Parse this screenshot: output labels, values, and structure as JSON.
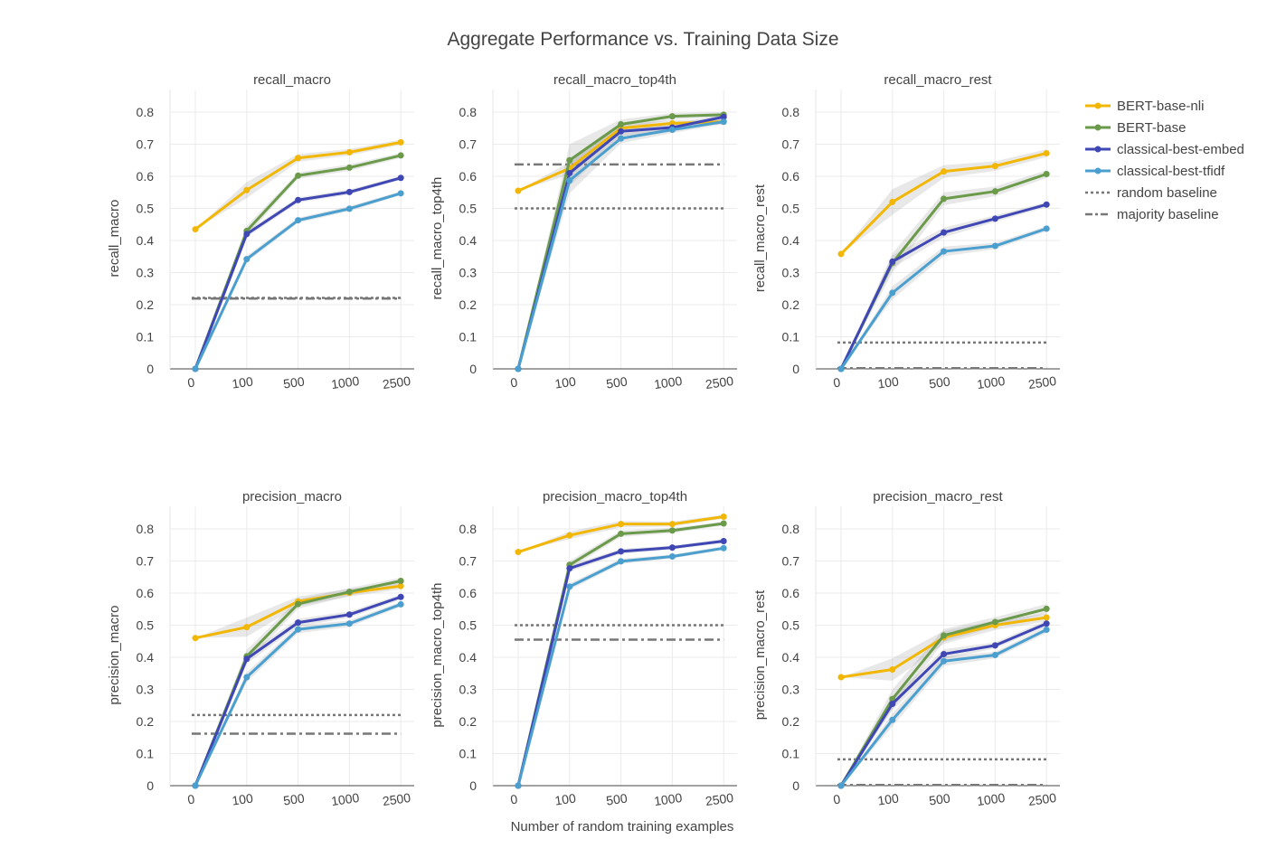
{
  "figure": {
    "title": "Aggregate Performance vs. Training Data Size",
    "shared_xlabel": "Number of random training examples"
  },
  "legend": {
    "entries": [
      {
        "label": "BERT-base-nli",
        "color": "#f2b705",
        "style": "line-marker"
      },
      {
        "label": "BERT-base",
        "color": "#6a9a4a",
        "style": "line-marker"
      },
      {
        "label": "classical-best-embed",
        "color": "#3f47b5",
        "style": "line-marker"
      },
      {
        "label": "classical-best-tfidf",
        "color": "#4a9fcf",
        "style": "line-marker"
      },
      {
        "label": "random baseline",
        "color": "#777777",
        "style": "dotted"
      },
      {
        "label": "majority baseline",
        "color": "#777777",
        "style": "dashdot"
      }
    ]
  },
  "chart_data": [
    {
      "type": "line",
      "title": "recall_macro",
      "ylabel": "recall_macro",
      "xlabel": "",
      "categories": [
        "0",
        "100",
        "500",
        "1000",
        "2500"
      ],
      "ylim": [
        0,
        0.87
      ],
      "yticks": [
        0,
        0.1,
        0.2,
        0.3,
        0.4,
        0.5,
        0.6,
        0.7,
        0.8
      ],
      "grid": true,
      "series": [
        {
          "name": "BERT-base-nli",
          "values": [
            0.435,
            0.557,
            0.657,
            0.675,
            0.706
          ],
          "band": [
            0.0,
            0.025,
            0.012,
            0.01,
            0.008
          ]
        },
        {
          "name": "BERT-base",
          "values": [
            0,
            0.43,
            0.602,
            0.627,
            0.665
          ],
          "band": [
            0,
            0.015,
            0.01,
            0.01,
            0.008
          ]
        },
        {
          "name": "classical-best-embed",
          "values": [
            0,
            0.42,
            0.526,
            0.551,
            0.595
          ],
          "band": [
            0,
            0.01,
            0.008,
            0.008,
            0.006
          ]
        },
        {
          "name": "classical-best-tfidf",
          "values": [
            0,
            0.342,
            0.463,
            0.499,
            0.547
          ],
          "band": [
            0,
            0.01,
            0.008,
            0.008,
            0.006
          ]
        }
      ],
      "baselines": [
        {
          "name": "random baseline",
          "value": 0.221
        },
        {
          "name": "majority baseline",
          "value": 0.219
        }
      ]
    },
    {
      "type": "line",
      "title": "recall_macro_top4th",
      "ylabel": "recall_macro_top4th",
      "xlabel": "",
      "categories": [
        "0",
        "100",
        "500",
        "1000",
        "2500"
      ],
      "ylim": [
        0,
        0.87
      ],
      "yticks": [
        0,
        0.1,
        0.2,
        0.3,
        0.4,
        0.5,
        0.6,
        0.7,
        0.8
      ],
      "grid": true,
      "series": [
        {
          "name": "BERT-base-nli",
          "values": [
            0.555,
            0.625,
            0.75,
            0.765,
            0.77
          ],
          "band": [
            0.0,
            0.02,
            0.012,
            0.01,
            0.008
          ]
        },
        {
          "name": "BERT-base",
          "values": [
            0,
            0.65,
            0.762,
            0.787,
            0.792
          ],
          "band": [
            0,
            0.05,
            0.015,
            0.01,
            0.008
          ]
        },
        {
          "name": "classical-best-embed",
          "values": [
            0,
            0.61,
            0.74,
            0.752,
            0.785
          ],
          "band": [
            0,
            0.04,
            0.015,
            0.01,
            0.008
          ]
        },
        {
          "name": "classical-best-tfidf",
          "values": [
            0,
            0.587,
            0.718,
            0.745,
            0.77
          ],
          "band": [
            0,
            0.04,
            0.015,
            0.01,
            0.008
          ]
        }
      ],
      "baselines": [
        {
          "name": "random baseline",
          "value": 0.5
        },
        {
          "name": "majority baseline",
          "value": 0.637
        }
      ]
    },
    {
      "type": "line",
      "title": "recall_macro_rest",
      "ylabel": "recall_macro_rest",
      "xlabel": "",
      "categories": [
        "0",
        "100",
        "500",
        "1000",
        "2500"
      ],
      "ylim": [
        0,
        0.87
      ],
      "yticks": [
        0,
        0.1,
        0.2,
        0.3,
        0.4,
        0.5,
        0.6,
        0.7,
        0.8
      ],
      "grid": true,
      "series": [
        {
          "name": "BERT-base-nli",
          "values": [
            0.358,
            0.52,
            0.615,
            0.632,
            0.672
          ],
          "band": [
            0.0,
            0.04,
            0.02,
            0.015,
            0.012
          ]
        },
        {
          "name": "BERT-base",
          "values": [
            0,
            0.33,
            0.53,
            0.553,
            0.607
          ],
          "band": [
            0,
            0.03,
            0.02,
            0.015,
            0.012
          ]
        },
        {
          "name": "classical-best-embed",
          "values": [
            0,
            0.334,
            0.425,
            0.468,
            0.512
          ],
          "band": [
            0,
            0.02,
            0.015,
            0.01,
            0.008
          ]
        },
        {
          "name": "classical-best-tfidf",
          "values": [
            0,
            0.237,
            0.366,
            0.383,
            0.437
          ],
          "band": [
            0,
            0.02,
            0.015,
            0.01,
            0.008
          ]
        }
      ],
      "baselines": [
        {
          "name": "random baseline",
          "value": 0.082
        },
        {
          "name": "majority baseline",
          "value": 0.002
        }
      ]
    },
    {
      "type": "line",
      "title": "precision_macro",
      "ylabel": "precision_macro",
      "xlabel": "",
      "categories": [
        "0",
        "100",
        "500",
        "1000",
        "2500"
      ],
      "ylim": [
        0,
        0.87
      ],
      "yticks": [
        0,
        0.1,
        0.2,
        0.3,
        0.4,
        0.5,
        0.6,
        0.7,
        0.8
      ],
      "grid": true,
      "series": [
        {
          "name": "BERT-base-nli",
          "values": [
            0.46,
            0.494,
            0.574,
            0.601,
            0.622
          ],
          "band": [
            0.0,
            0.03,
            0.015,
            0.012,
            0.01
          ]
        },
        {
          "name": "BERT-base",
          "values": [
            0,
            0.403,
            0.566,
            0.604,
            0.638
          ],
          "band": [
            0,
            0.02,
            0.015,
            0.012,
            0.01
          ]
        },
        {
          "name": "classical-best-embed",
          "values": [
            0,
            0.395,
            0.508,
            0.533,
            0.588
          ],
          "band": [
            0,
            0.015,
            0.012,
            0.01,
            0.008
          ]
        },
        {
          "name": "classical-best-tfidf",
          "values": [
            0,
            0.338,
            0.487,
            0.505,
            0.565
          ],
          "band": [
            0,
            0.015,
            0.012,
            0.01,
            0.008
          ]
        }
      ],
      "baselines": [
        {
          "name": "random baseline",
          "value": 0.22
        },
        {
          "name": "majority baseline",
          "value": 0.162
        }
      ]
    },
    {
      "type": "line",
      "title": "precision_macro_top4th",
      "ylabel": "precision_macro_top4th",
      "xlabel": "",
      "categories": [
        "0",
        "100",
        "500",
        "1000",
        "2500"
      ],
      "ylim": [
        0,
        0.87
      ],
      "yticks": [
        0,
        0.1,
        0.2,
        0.3,
        0.4,
        0.5,
        0.6,
        0.7,
        0.8
      ],
      "grid": true,
      "series": [
        {
          "name": "BERT-base-nli",
          "values": [
            0.728,
            0.78,
            0.815,
            0.815,
            0.838
          ],
          "band": [
            0.0,
            0.012,
            0.01,
            0.008,
            0.006
          ]
        },
        {
          "name": "BERT-base",
          "values": [
            0,
            0.688,
            0.785,
            0.795,
            0.817
          ],
          "band": [
            0,
            0.012,
            0.01,
            0.008,
            0.006
          ]
        },
        {
          "name": "classical-best-embed",
          "values": [
            0,
            0.677,
            0.73,
            0.742,
            0.762
          ],
          "band": [
            0,
            0.01,
            0.008,
            0.006,
            0.006
          ]
        },
        {
          "name": "classical-best-tfidf",
          "values": [
            0,
            0.62,
            0.699,
            0.714,
            0.74
          ],
          "band": [
            0,
            0.01,
            0.008,
            0.006,
            0.006
          ]
        }
      ],
      "baselines": [
        {
          "name": "random baseline",
          "value": 0.5
        },
        {
          "name": "majority baseline",
          "value": 0.455
        }
      ]
    },
    {
      "type": "line",
      "title": "precision_macro_rest",
      "ylabel": "precision_macro_rest",
      "xlabel": "",
      "categories": [
        "0",
        "100",
        "500",
        "1000",
        "2500"
      ],
      "ylim": [
        0,
        0.87
      ],
      "yticks": [
        0,
        0.1,
        0.2,
        0.3,
        0.4,
        0.5,
        0.6,
        0.7,
        0.8
      ],
      "grid": true,
      "series": [
        {
          "name": "BERT-base-nli",
          "values": [
            0.338,
            0.362,
            0.462,
            0.5,
            0.524
          ],
          "band": [
            0.0,
            0.035,
            0.02,
            0.015,
            0.012
          ]
        },
        {
          "name": "BERT-base",
          "values": [
            0,
            0.27,
            0.468,
            0.51,
            0.551
          ],
          "band": [
            0,
            0.03,
            0.02,
            0.015,
            0.015
          ]
        },
        {
          "name": "classical-best-embed",
          "values": [
            0,
            0.255,
            0.41,
            0.437,
            0.505
          ],
          "band": [
            0,
            0.02,
            0.015,
            0.01,
            0.01
          ]
        },
        {
          "name": "classical-best-tfidf",
          "values": [
            0,
            0.205,
            0.388,
            0.407,
            0.486
          ],
          "band": [
            0,
            0.02,
            0.015,
            0.01,
            0.01
          ]
        }
      ],
      "baselines": [
        {
          "name": "random baseline",
          "value": 0.082
        },
        {
          "name": "majority baseline",
          "value": 0.002
        }
      ]
    }
  ]
}
